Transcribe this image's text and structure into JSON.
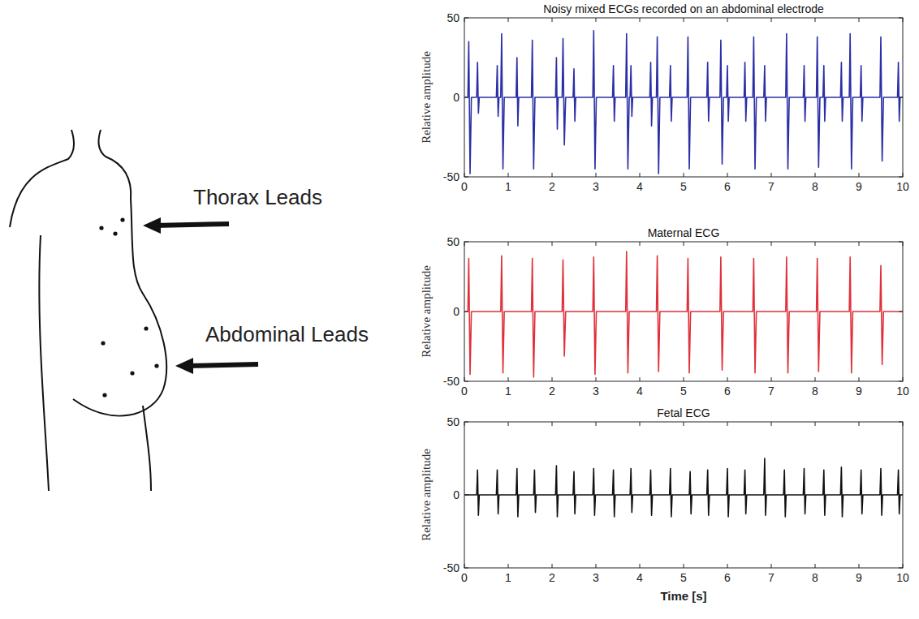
{
  "diagram": {
    "labels": [
      "Thorax Leads",
      "Abdominal Leads"
    ]
  },
  "chart_data": [
    {
      "type": "line",
      "title": "Noisy mixed ECGs recorded on an abdominal electrode",
      "y_label": "Relative amplitude",
      "color": "#2b2fa6",
      "grid": false,
      "xlim": [
        0,
        10
      ],
      "xticks": [
        0,
        1,
        2,
        3,
        4,
        5,
        6,
        7,
        8,
        9,
        10
      ],
      "ylim": [
        -50,
        50
      ],
      "yticks": [
        -50,
        0,
        50
      ],
      "x": [
        0,
        0.08,
        0.1,
        0.13,
        0.16,
        0.28,
        0.3,
        0.32,
        0.34,
        0.73,
        0.75,
        0.77,
        0.79,
        0.83,
        0.85,
        0.88,
        0.91,
        1.18,
        1.2,
        1.22,
        1.24,
        1.53,
        1.55,
        1.58,
        1.61,
        2.08,
        2.1,
        2.12,
        2.14,
        2.23,
        2.25,
        2.28,
        2.31,
        2.48,
        2.5,
        2.52,
        2.54,
        2.93,
        2.95,
        2.98,
        3.01,
        3.38,
        3.4,
        3.42,
        3.44,
        3.68,
        3.7,
        3.73,
        3.76,
        3.78,
        3.8,
        3.82,
        3.84,
        4.23,
        4.25,
        4.27,
        4.29,
        4.38,
        4.4,
        4.43,
        4.46,
        4.68,
        4.7,
        4.72,
        4.74,
        5.08,
        5.1,
        5.13,
        5.16,
        5.53,
        5.55,
        5.57,
        5.59,
        5.83,
        5.85,
        5.88,
        5.91,
        5.98,
        6,
        6.02,
        6.04,
        6.38,
        6.4,
        6.42,
        6.44,
        6.58,
        6.6,
        6.63,
        6.66,
        6.83,
        6.85,
        6.87,
        6.89,
        7.33,
        7.35,
        7.38,
        7.41,
        7.73,
        7.75,
        7.77,
        7.79,
        8.03,
        8.05,
        8.08,
        8.11,
        8.18,
        8.2,
        8.22,
        8.24,
        8.58,
        8.6,
        8.62,
        8.64,
        8.78,
        8.8,
        8.83,
        8.86,
        9.03,
        9.05,
        9.07,
        9.09,
        9.48,
        9.5,
        9.53,
        9.56,
        9.88,
        9.9,
        9.92,
        9.94,
        10
      ],
      "values": [
        0,
        0,
        35,
        -48,
        0,
        0,
        22,
        -10,
        0,
        0,
        20,
        -12,
        0,
        0,
        40,
        -45,
        0,
        0,
        25,
        -18,
        0,
        0,
        36,
        -45,
        0,
        0,
        25,
        -20,
        0,
        0,
        37,
        -30,
        0,
        0,
        18,
        -15,
        0,
        0,
        42,
        -45,
        0,
        0,
        20,
        -15,
        0,
        0,
        40,
        -45,
        0,
        0,
        20,
        -12,
        0,
        0,
        22,
        -18,
        0,
        0,
        38,
        -48,
        0,
        0,
        20,
        -15,
        0,
        0,
        38,
        -45,
        0,
        0,
        22,
        -15,
        0,
        0,
        36,
        -42,
        0,
        0,
        20,
        -15,
        0,
        0,
        22,
        -15,
        0,
        0,
        38,
        -45,
        0,
        0,
        20,
        -15,
        0,
        0,
        40,
        -45,
        0,
        0,
        20,
        -15,
        0,
        0,
        38,
        -44,
        0,
        0,
        20,
        -15,
        0,
        0,
        22,
        -15,
        0,
        0,
        40,
        -45,
        0,
        0,
        20,
        -15,
        0,
        0,
        38,
        -40,
        0,
        0,
        22,
        -15,
        0,
        0
      ]
    },
    {
      "type": "line",
      "title": "Maternal ECG",
      "y_label": "Relative amplitude",
      "color": "#e0303a",
      "grid": false,
      "xlim": [
        0,
        10
      ],
      "xticks": [
        0,
        1,
        2,
        3,
        4,
        5,
        6,
        7,
        8,
        9,
        10
      ],
      "ylim": [
        -50,
        50
      ],
      "yticks": [
        -50,
        0,
        50
      ],
      "x": [
        0,
        0.08,
        0.1,
        0.13,
        0.16,
        0.83,
        0.85,
        0.88,
        0.91,
        1.53,
        1.55,
        1.58,
        1.61,
        2.23,
        2.25,
        2.28,
        2.31,
        2.93,
        2.95,
        2.98,
        3.01,
        3.68,
        3.7,
        3.73,
        3.76,
        4.38,
        4.4,
        4.43,
        4.46,
        5.08,
        5.1,
        5.13,
        5.16,
        5.83,
        5.85,
        5.88,
        5.91,
        6.58,
        6.6,
        6.63,
        6.66,
        7.33,
        7.35,
        7.38,
        7.41,
        8.03,
        8.05,
        8.08,
        8.11,
        8.78,
        8.8,
        8.83,
        8.86,
        9.48,
        9.5,
        9.53,
        9.56,
        10
      ],
      "values": [
        0,
        0,
        38,
        -45,
        0,
        0,
        40,
        -44,
        0,
        0,
        38,
        -47,
        0,
        0,
        37,
        -32,
        0,
        0,
        39,
        -45,
        0,
        0,
        43,
        -44,
        0,
        0,
        40,
        -43,
        0,
        0,
        38,
        -44,
        0,
        0,
        39,
        -42,
        0,
        0,
        38,
        -44,
        0,
        0,
        39,
        -44,
        0,
        0,
        38,
        -43,
        0,
        0,
        39,
        -44,
        0,
        0,
        33,
        -38,
        0,
        0
      ]
    },
    {
      "type": "line",
      "title": "Fetal ECG",
      "y_label": "Relative amplitude",
      "x_label": "Time [s]",
      "color": "#111111",
      "grid": false,
      "xlim": [
        0,
        10
      ],
      "xticks": [
        0,
        1,
        2,
        3,
        4,
        5,
        6,
        7,
        8,
        9,
        10
      ],
      "ylim": [
        -50,
        50
      ],
      "yticks": [
        -50,
        0,
        50
      ],
      "x": [
        0,
        0.28,
        0.3,
        0.32,
        0.34,
        0.73,
        0.75,
        0.77,
        0.79,
        1.18,
        1.2,
        1.22,
        1.24,
        1.58,
        1.6,
        1.62,
        1.64,
        2.08,
        2.1,
        2.12,
        2.14,
        2.48,
        2.5,
        2.52,
        2.54,
        2.93,
        2.95,
        2.97,
        2.99,
        3.38,
        3.4,
        3.42,
        3.44,
        3.78,
        3.8,
        3.82,
        3.84,
        4.23,
        4.25,
        4.27,
        4.29,
        4.68,
        4.7,
        4.72,
        4.74,
        5.13,
        5.15,
        5.17,
        5.19,
        5.53,
        5.55,
        5.57,
        5.59,
        5.98,
        6,
        6.02,
        6.04,
        6.38,
        6.4,
        6.42,
        6.44,
        6.83,
        6.85,
        6.87,
        6.89,
        7.28,
        7.3,
        7.32,
        7.34,
        7.73,
        7.75,
        7.77,
        7.79,
        8.18,
        8.2,
        8.22,
        8.24,
        8.58,
        8.6,
        8.62,
        8.64,
        9.03,
        9.05,
        9.07,
        9.09,
        9.48,
        9.5,
        9.52,
        9.54,
        9.88,
        9.9,
        9.92,
        9.94,
        10
      ],
      "values": [
        0,
        0,
        17,
        -14,
        0,
        0,
        17,
        -13,
        0,
        0,
        18,
        -15,
        0,
        0,
        17,
        -12,
        0,
        0,
        20,
        -15,
        0,
        0,
        16,
        -13,
        0,
        0,
        18,
        -14,
        0,
        0,
        17,
        -15,
        0,
        0,
        18,
        -12,
        0,
        0,
        17,
        -14,
        0,
        0,
        18,
        -15,
        0,
        0,
        16,
        -13,
        0,
        0,
        17,
        -14,
        0,
        0,
        18,
        -15,
        0,
        0,
        17,
        -13,
        0,
        0,
        25,
        -14,
        0,
        0,
        17,
        -15,
        0,
        0,
        18,
        -13,
        0,
        0,
        17,
        -14,
        0,
        0,
        19,
        -15,
        0,
        0,
        17,
        -13,
        0,
        0,
        18,
        -14,
        0,
        0,
        17,
        -13,
        0,
        0
      ]
    }
  ]
}
